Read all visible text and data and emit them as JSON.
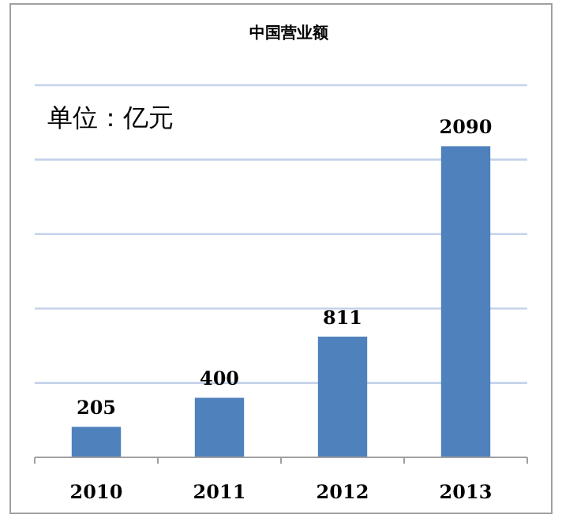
{
  "chart_data": {
    "type": "bar",
    "title": "中国营业额",
    "categories": [
      "2010",
      "2011",
      "2012",
      "2013"
    ],
    "values": [
      205,
      400,
      811,
      2090
    ],
    "color": "#4f81bd",
    "data_labels": true,
    "grid": "y",
    "tick_labels": "x",
    "ylim": [
      0,
      2500
    ],
    "yticks": [
      {
        "value": 0,
        "label": null
      },
      {
        "value": 500,
        "label": null
      },
      {
        "value": 1000,
        "label": null
      },
      {
        "value": 1500,
        "label": null
      },
      {
        "value": 2000,
        "label": null
      },
      {
        "value": 2500,
        "label": null
      }
    ],
    "annotations": [
      "单位：亿元"
    ]
  }
}
